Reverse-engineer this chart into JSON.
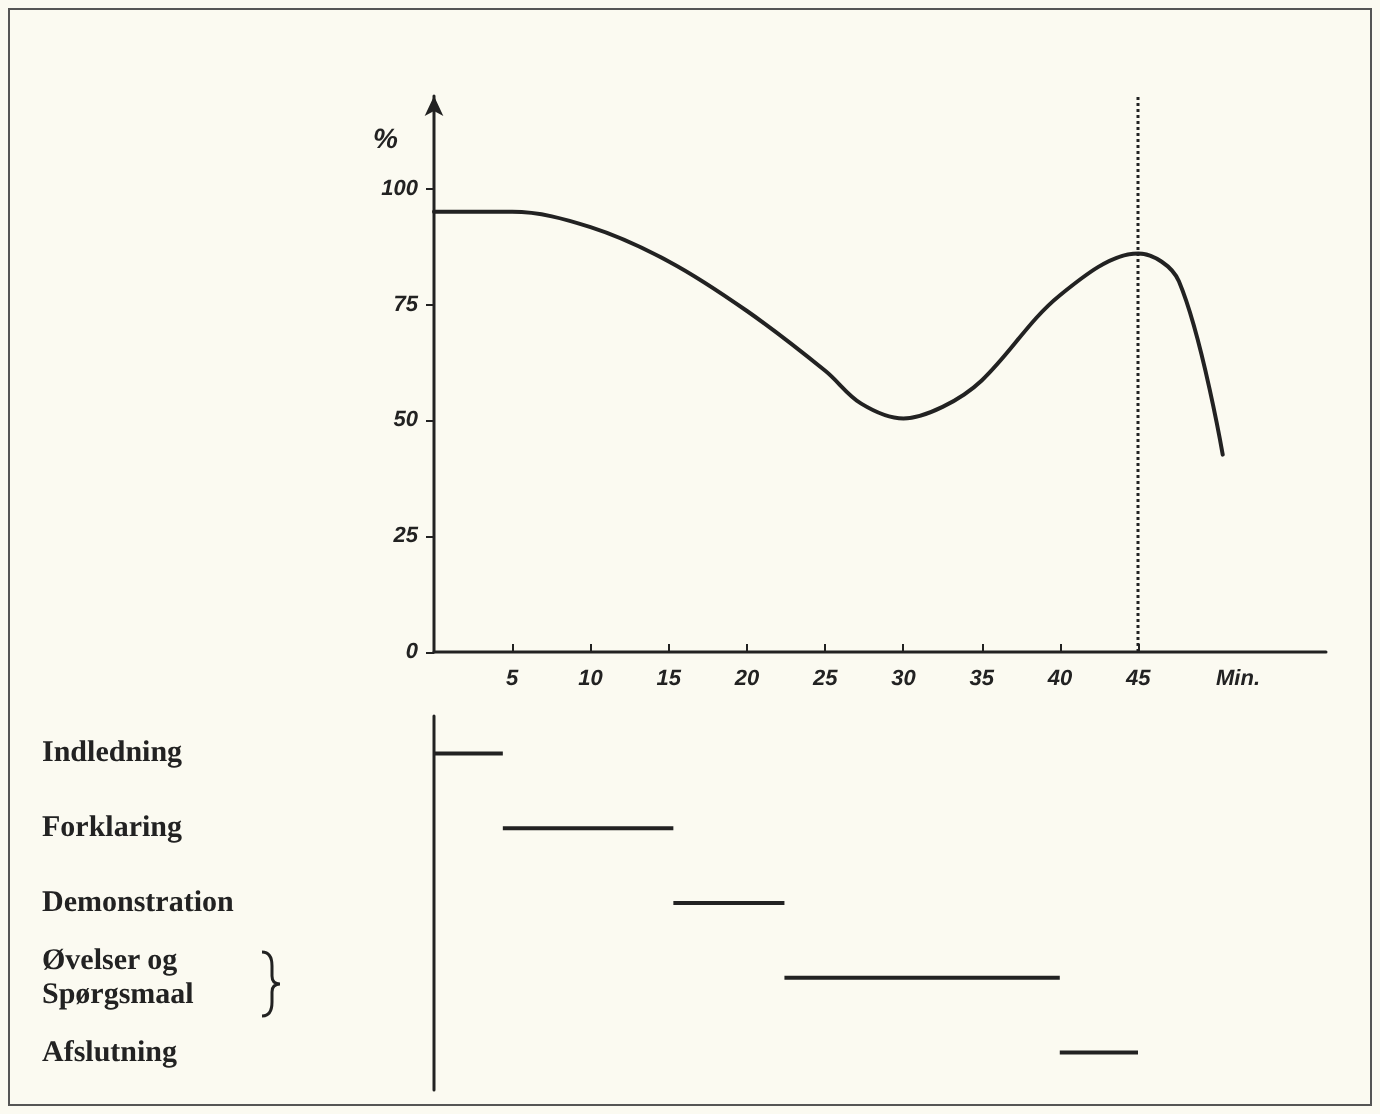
{
  "chart_data": [
    {
      "type": "line",
      "xlabel": "Min.",
      "ylabel": "%",
      "color": "#222222",
      "x": [
        0,
        5,
        10,
        15,
        20,
        25,
        27.3,
        30,
        32.5,
        35,
        40,
        45,
        47.6,
        50.4
      ],
      "values": [
        95,
        95,
        91.7,
        84.3,
        73.6,
        60.7,
        53.6,
        50.4,
        52.9,
        58.6,
        77,
        86,
        80,
        42.6
      ],
      "xlim": [
        0,
        57
      ],
      "xticks": [
        5,
        10,
        15,
        20,
        25,
        30,
        35,
        40,
        45
      ],
      "ylim": [
        0,
        120
      ],
      "yticks": [
        0,
        25,
        50,
        75,
        100
      ],
      "ref_lines": [
        {
          "axis": "x",
          "value": 45,
          "line_style": "dotted"
        }
      ]
    },
    {
      "type": "bar",
      "orientation": "horizontal",
      "color": "#222222",
      "categories": [
        "Indledning",
        "Forklaring",
        "Demonstration",
        "Øvelser og Spørgsmaal",
        "Afslutning"
      ],
      "base": [
        0,
        4.4,
        15.3,
        22.4,
        40
      ],
      "values": [
        4.4,
        10.9,
        7.1,
        17.6,
        5
      ],
      "xlim": [
        0,
        45
      ],
      "xticks": [
        5,
        10,
        15,
        20,
        25,
        30,
        35,
        40,
        45
      ],
      "tick_labels": "y"
    }
  ]
}
